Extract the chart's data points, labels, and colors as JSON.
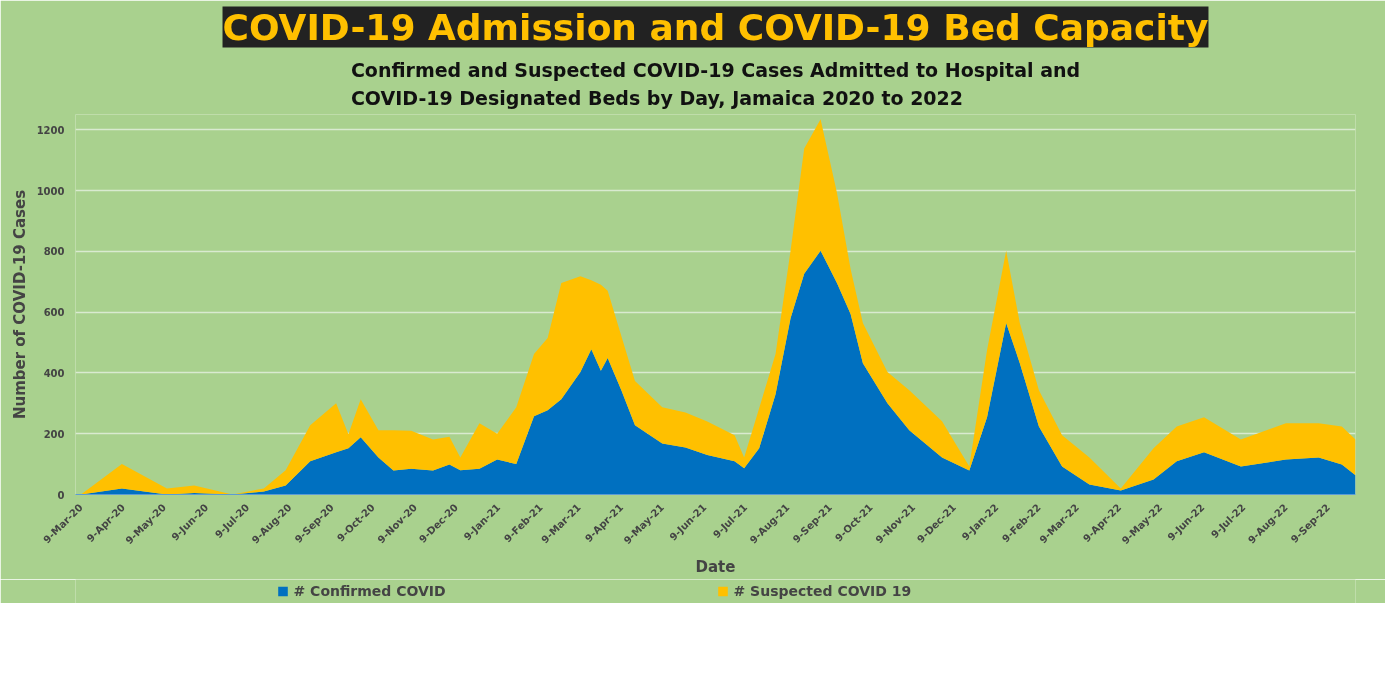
{
  "chart_data": {
    "type": "area",
    "stacked": true,
    "title": "COVID-19 Admission and COVID-19 Bed Capacity",
    "subtitle": "Confirmed and Suspected COVID-19 Cases Admitted to Hospital and COVID-19 Designated Beds by Day, Jamaica 2020 to 2022",
    "xlabel": "Date",
    "ylabel": "Number of COVID-19 Cases",
    "x": [
      "2020-03-09",
      "2020-04-08",
      "2020-05-11",
      "2020-05-31",
      "2020-06-28",
      "2020-07-21",
      "2020-08-06",
      "2020-08-24",
      "2020-09-12",
      "2020-09-21",
      "2020-09-30",
      "2020-10-13",
      "2020-10-24",
      "2020-11-06",
      "2020-11-22",
      "2020-12-04",
      "2020-12-12",
      "2020-12-26",
      "2021-01-08",
      "2021-01-22",
      "2021-02-04",
      "2021-02-14",
      "2021-02-24",
      "2021-03-10",
      "2021-03-18",
      "2021-03-25",
      "2021-03-30",
      "2021-04-09",
      "2021-04-19",
      "2021-05-09",
      "2021-05-26",
      "2021-06-11",
      "2021-07-01",
      "2021-07-08",
      "2021-07-19",
      "2021-07-31",
      "2021-08-11",
      "2021-08-21",
      "2021-09-02",
      "2021-09-14",
      "2021-09-24",
      "2021-10-03",
      "2021-10-21",
      "2021-11-06",
      "2021-11-30",
      "2021-12-20",
      "2022-01-02",
      "2022-01-16",
      "2022-01-26",
      "2022-02-09",
      "2022-02-26",
      "2022-03-18",
      "2022-04-10",
      "2022-05-04",
      "2022-05-21",
      "2022-06-10",
      "2022-07-07",
      "2022-08-09",
      "2022-09-02",
      "2022-09-19",
      "2022-09-29"
    ],
    "series": [
      {
        "name": "# Confirmed COVID",
        "color": "#0070c0",
        "values": [
          0,
          20,
          0,
          5,
          0,
          10,
          30,
          109,
          139,
          152,
          188,
          122,
          79,
          85,
          79,
          99,
          80,
          85,
          115,
          100,
          257,
          277,
          313,
          403,
          478,
          407,
          449,
          343,
          228,
          168,
          155,
          130,
          109,
          86,
          152,
          330,
          580,
          726,
          802,
          696,
          594,
          432,
          300,
          211,
          122,
          79,
          254,
          564,
          432,
          224,
          92,
          33,
          13,
          49,
          109,
          139,
          92,
          115,
          122,
          99,
          63
        ]
      },
      {
        "name": "# Suspected COVID 19",
        "color": "#ffc000",
        "values": [
          0,
          80,
          20,
          25,
          0,
          10,
          50,
          119,
          161,
          46,
          125,
          89,
          132,
          125,
          102,
          91,
          42,
          149,
          85,
          187,
          205,
          238,
          383,
          315,
          227,
          283,
          221,
          178,
          145,
          119,
          115,
          110,
          86,
          36,
          132,
          132,
          222,
          412,
          432,
          297,
          148,
          132,
          103,
          132,
          119,
          13,
          221,
          238,
          132,
          119,
          103,
          89,
          7,
          103,
          115,
          115,
          89,
          119,
          112,
          125,
          118
        ]
      }
    ],
    "xlim": [
      "2020-03-05",
      "2022-09-29"
    ],
    "xticks": [
      {
        "value": "2020-03-09",
        "label": "9-Mar-20"
      },
      {
        "value": "2020-04-09",
        "label": "9-Apr-20"
      },
      {
        "value": "2020-05-09",
        "label": "9-May-20"
      },
      {
        "value": "2020-06-09",
        "label": "9-Jun-20"
      },
      {
        "value": "2020-07-09",
        "label": "9-Jul-20"
      },
      {
        "value": "2020-08-09",
        "label": "9-Aug-20"
      },
      {
        "value": "2020-09-09",
        "label": "9-Sep-20"
      },
      {
        "value": "2020-10-09",
        "label": "9-Oct-20"
      },
      {
        "value": "2020-11-09",
        "label": "9-Nov-20"
      },
      {
        "value": "2020-12-09",
        "label": "9-Dec-20"
      },
      {
        "value": "2021-01-09",
        "label": "9-Jan-21"
      },
      {
        "value": "2021-02-09",
        "label": "9-Feb-21"
      },
      {
        "value": "2021-03-09",
        "label": "9-Mar-21"
      },
      {
        "value": "2021-04-09",
        "label": "9-Apr-21"
      },
      {
        "value": "2021-05-09",
        "label": "9-May-21"
      },
      {
        "value": "2021-06-09",
        "label": "9-Jun-21"
      },
      {
        "value": "2021-07-09",
        "label": "9-Jul-21"
      },
      {
        "value": "2021-08-09",
        "label": "9-Aug-21"
      },
      {
        "value": "2021-09-09",
        "label": "9-Sep-21"
      },
      {
        "value": "2021-10-09",
        "label": "9-Oct-21"
      },
      {
        "value": "2021-11-09",
        "label": "9-Nov-21"
      },
      {
        "value": "2021-12-09",
        "label": "9-Dec-21"
      },
      {
        "value": "2022-01-09",
        "label": "9-Jan-22"
      },
      {
        "value": "2022-02-09",
        "label": "9-Feb-22"
      },
      {
        "value": "2022-03-09",
        "label": "9-Mar-22"
      },
      {
        "value": "2022-04-09",
        "label": "9-Apr-22"
      },
      {
        "value": "2022-05-09",
        "label": "9-May-22"
      },
      {
        "value": "2022-06-09",
        "label": "9-Jun-22"
      },
      {
        "value": "2022-07-09",
        "label": "9-Jul-22"
      },
      {
        "value": "2022-08-09",
        "label": "9-Aug-22"
      },
      {
        "value": "2022-09-09",
        "label": "9-Sep-22"
      }
    ],
    "ylim": [
      0,
      1250
    ],
    "yticks": [
      0,
      200,
      400,
      600,
      800,
      1000,
      1200
    ],
    "grid": "y",
    "legend": "bottom"
  }
}
